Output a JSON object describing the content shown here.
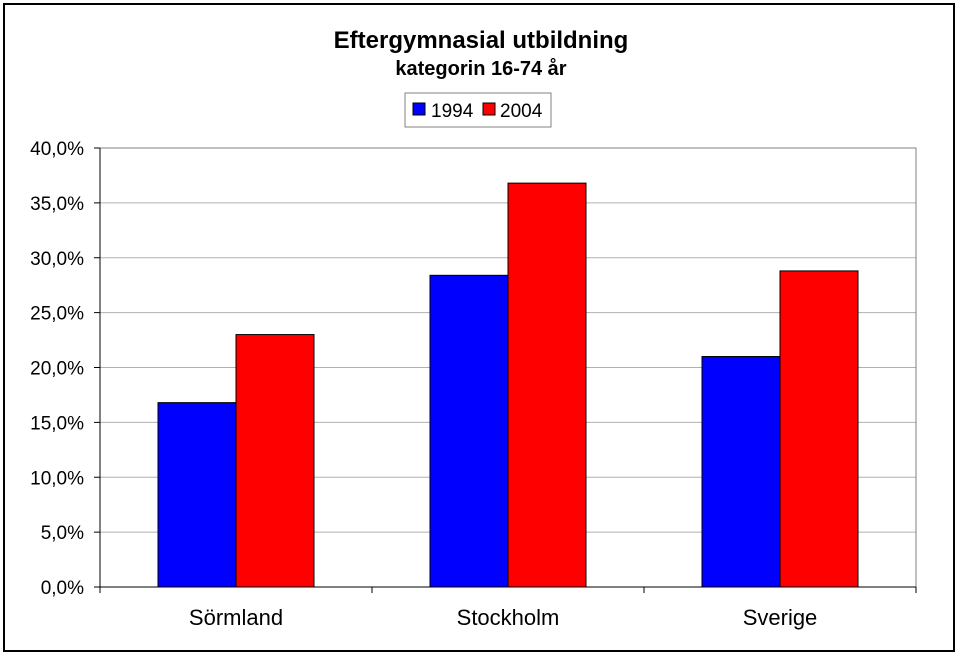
{
  "chart_data": {
    "type": "bar",
    "title": "Eftergymnasial utbildning",
    "subtitle": "kategorin 16-74 år",
    "categories": [
      "Sörmland",
      "Stockholm",
      "Sverige"
    ],
    "series": [
      {
        "name": "1994",
        "color": "#0000ff",
        "values": [
          16.8,
          28.4,
          21.0
        ]
      },
      {
        "name": "2004",
        "color": "#ff0000",
        "values": [
          23.0,
          36.8,
          28.8
        ]
      }
    ],
    "ylim": [
      0,
      40
    ],
    "ytick_values": [
      0,
      5,
      10,
      15,
      20,
      25,
      30,
      35,
      40
    ],
    "ytick_labels": [
      "0,0%",
      "5,0%",
      "10,0%",
      "15,0%",
      "20,0%",
      "25,0%",
      "30,0%",
      "35,0%",
      "40,0%"
    ],
    "xlabel": "",
    "ylabel": "",
    "grid": true,
    "legend_position": "top-center"
  }
}
